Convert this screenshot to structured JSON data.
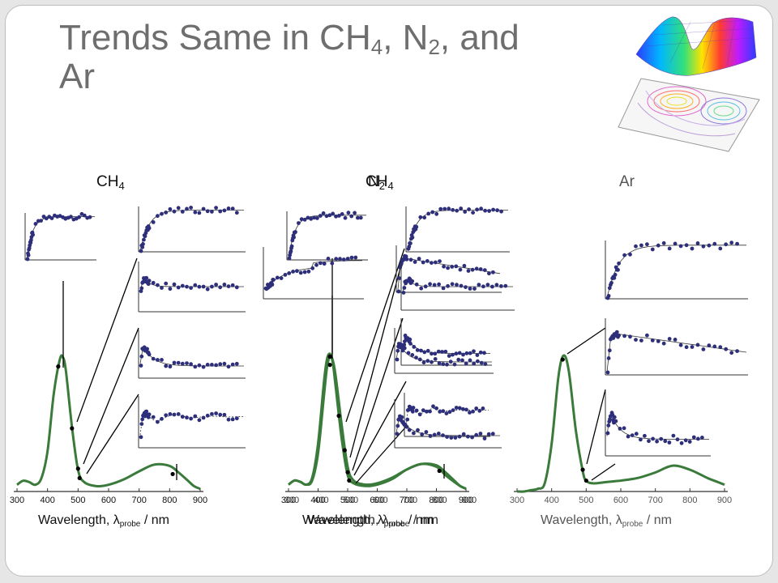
{
  "slide": {
    "title_main": "Trends Same in CH",
    "title_sub1": "4",
    "title_mid": ", N",
    "title_sub2": "2",
    "title_end": ", and",
    "title_line2": "Ar"
  },
  "chart_data": [
    {
      "type": "line",
      "panel": "CH4",
      "label": "CH",
      "label_sub": "4",
      "xlabel_main": "Wavelength, λ",
      "xlabel_sub": "probe",
      "xlabel_unit": " / nm",
      "xlim": [
        300,
        900
      ],
      "xticks": [
        "300",
        "400",
        "500",
        "600",
        "700",
        "800",
        "900"
      ],
      "color": "#3a7a3a",
      "series": [
        {
          "x": [
            300,
            320,
            340,
            360,
            380,
            400,
            420,
            440,
            450,
            460,
            480,
            500,
            520,
            560,
            600,
            650,
            700,
            750,
            800,
            830,
            860,
            880,
            900
          ],
          "y": [
            0.05,
            0.08,
            0.07,
            0.05,
            0.1,
            0.3,
            0.72,
            0.98,
            1.0,
            0.9,
            0.48,
            0.16,
            0.07,
            0.04,
            0.05,
            0.09,
            0.15,
            0.2,
            0.19,
            0.14,
            0.08,
            0.04,
            0.02
          ]
        }
      ],
      "markers": [
        {
          "x": 435,
          "y": 0.93
        },
        {
          "x": 480,
          "y": 0.47
        },
        {
          "x": 500,
          "y": 0.17
        },
        {
          "x": 505,
          "y": 0.1
        },
        {
          "x": 810,
          "y": 0.13
        }
      ]
    },
    {
      "type": "line",
      "panel": "N2",
      "label_overlay": [
        "CH",
        "N"
      ],
      "label_subs": [
        "4",
        "2"
      ],
      "xlabel_main": "Wavelength, λ",
      "xlabel_sub": "probe",
      "xlabel_unit": " / nm",
      "xlim": [
        300,
        900
      ],
      "xticks": [
        "300",
        "400",
        "500",
        "600",
        "700",
        "800",
        "900"
      ],
      "color": "#3a7a3a",
      "series": [
        {
          "x": [
            300,
            320,
            340,
            360,
            380,
            400,
            420,
            430,
            440,
            450,
            460,
            480,
            500,
            520,
            560,
            600,
            650,
            700,
            750,
            800,
            830,
            860,
            880,
            900
          ],
          "y": [
            0.05,
            0.08,
            0.07,
            0.05,
            0.1,
            0.35,
            0.8,
            0.96,
            1.0,
            0.93,
            0.75,
            0.38,
            0.12,
            0.06,
            0.04,
            0.05,
            0.09,
            0.16,
            0.2,
            0.19,
            0.14,
            0.08,
            0.04,
            0.02
          ]
        },
        {
          "x": [
            300,
            320,
            340,
            360,
            380,
            400,
            420,
            430,
            440,
            450,
            460,
            480,
            500,
            520,
            560,
            600,
            650,
            700,
            750,
            800,
            830,
            860,
            880,
            900
          ],
          "y": [
            0.05,
            0.08,
            0.07,
            0.05,
            0.08,
            0.28,
            0.7,
            0.9,
            0.98,
            0.95,
            0.83,
            0.48,
            0.18,
            0.08,
            0.05,
            0.06,
            0.1,
            0.16,
            0.2,
            0.18,
            0.12,
            0.07,
            0.04,
            0.02
          ]
        }
      ],
      "markers": [
        {
          "x": 440,
          "y": 0.98
        },
        {
          "x": 440,
          "y": 0.92
        },
        {
          "x": 470,
          "y": 0.55
        },
        {
          "x": 490,
          "y": 0.3
        },
        {
          "x": 500,
          "y": 0.14
        },
        {
          "x": 505,
          "y": 0.08
        },
        {
          "x": 810,
          "y": 0.15
        }
      ]
    },
    {
      "type": "line",
      "panel": "Ar",
      "label": "Ar",
      "xlabel_main": "Wavelength, λ",
      "xlabel_sub": "probe",
      "xlabel_unit": " / nm",
      "xlim": [
        300,
        900
      ],
      "xticks": [
        "300",
        "400",
        "500",
        "600",
        "700",
        "800",
        "900"
      ],
      "color": "#3a7a3a",
      "series": [
        {
          "x": [
            300,
            320,
            340,
            360,
            380,
            400,
            420,
            435,
            450,
            470,
            490,
            500,
            520,
            560,
            600,
            650,
            700,
            750,
            800,
            850,
            880,
            900
          ],
          "y": [
            0.0,
            0.0,
            0.01,
            0.02,
            0.06,
            0.35,
            0.85,
            1.0,
            0.88,
            0.45,
            0.15,
            0.08,
            0.06,
            0.07,
            0.08,
            0.1,
            0.14,
            0.19,
            0.16,
            0.1,
            0.07,
            0.05
          ]
        }
      ],
      "markers": [
        {
          "x": 432,
          "y": 0.97
        },
        {
          "x": 490,
          "y": 0.16
        },
        {
          "x": 500,
          "y": 0.08
        }
      ]
    }
  ]
}
